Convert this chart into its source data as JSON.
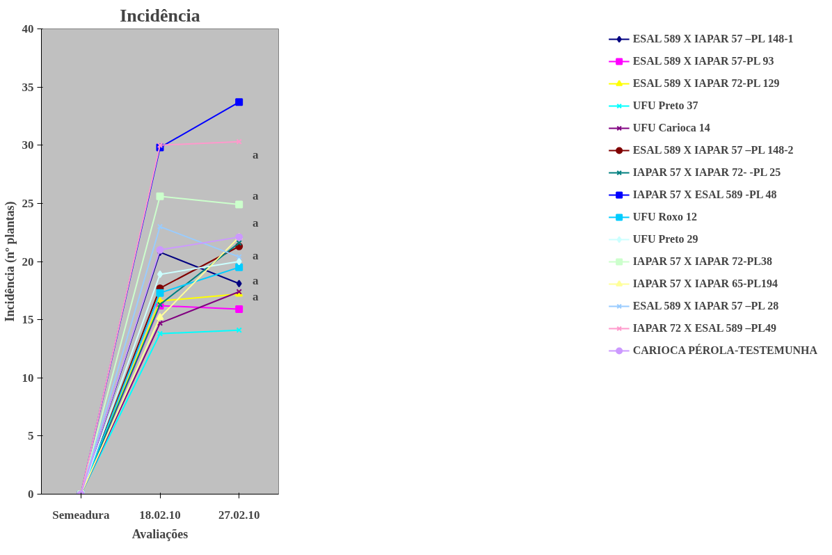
{
  "chart_data": {
    "type": "line",
    "title": "Incidência",
    "xlabel": "Avaliações",
    "ylabel": "Incidência (nº plantas)",
    "categories": [
      "Semeadura",
      "18.02.10",
      "27.02.10"
    ],
    "ylim": [
      0,
      40
    ],
    "yticks": [
      0,
      5,
      10,
      15,
      20,
      25,
      30,
      35,
      40
    ],
    "grid": false,
    "legend": "right",
    "series": [
      {
        "name": "ESAL 589 X IAPAR 57 –PL 148-1",
        "color": "#000080",
        "marker": "diamond",
        "values": [
          0,
          20.8,
          18.1
        ]
      },
      {
        "name": "ESAL 589 X IAPAR 57-PL 93",
        "color": "#ff00ff",
        "marker": "square",
        "values": [
          0,
          16.2,
          15.9
        ]
      },
      {
        "name": "ESAL 589 X IAPAR 72-PL 129",
        "color": "#ffff00",
        "marker": "triangle",
        "values": [
          0,
          16.6,
          17.2
        ]
      },
      {
        "name": "UFU Preto 37",
        "color": "#00ffff",
        "marker": "cross",
        "values": [
          0,
          13.8,
          14.1
        ]
      },
      {
        "name": "UFU Carioca 14",
        "color": "#800080",
        "marker": "cross",
        "values": [
          0,
          14.7,
          17.4
        ]
      },
      {
        "name": "ESAL 589 X IAPAR 57 –PL 148-2",
        "color": "#800000",
        "marker": "circle",
        "values": [
          0,
          17.7,
          21.3
        ]
      },
      {
        "name": "IAPAR 57 X IAPAR 72- -PL 25",
        "color": "#008080",
        "marker": "cross",
        "values": [
          0,
          16.3,
          21.6
        ]
      },
      {
        "name": "IAPAR 57 X ESAL 589 -PL 48",
        "color": "#0000ff",
        "marker": "square",
        "values": [
          0,
          29.8,
          33.7
        ]
      },
      {
        "name": "UFU Roxo 12",
        "color": "#00ccff",
        "marker": "square",
        "values": [
          0,
          17.3,
          19.5
        ]
      },
      {
        "name": "UFU Preto 29",
        "color": "#ccffff",
        "marker": "diamond",
        "values": [
          0,
          18.9,
          20.0
        ]
      },
      {
        "name": "IAPAR 57 X IAPAR 72-PL38",
        "color": "#ccffcc",
        "marker": "square",
        "values": [
          0,
          25.6,
          24.9
        ]
      },
      {
        "name": "IAPAR 57 X IAPAR 65-PL194",
        "color": "#ffff99",
        "marker": "triangle",
        "values": [
          0,
          15.2,
          22.1
        ]
      },
      {
        "name": "ESAL 589 X IAPAR 57 –PL 28",
        "color": "#99ccff",
        "marker": "cross",
        "values": [
          0,
          23.0,
          20.4
        ]
      },
      {
        "name": "IAPAR 72 X ESAL 589 –PL49",
        "color": "#ff99cc",
        "marker": "cross",
        "values": [
          0,
          30.0,
          30.3
        ]
      },
      {
        "name": "CARIOCA PÉROLA-TESTEMUNHA",
        "color": "#cc99ff",
        "marker": "circle",
        "values": [
          0,
          21.0,
          22.1
        ]
      }
    ],
    "annotations": [
      "a",
      "a",
      "a",
      "a",
      "a",
      "a"
    ]
  }
}
